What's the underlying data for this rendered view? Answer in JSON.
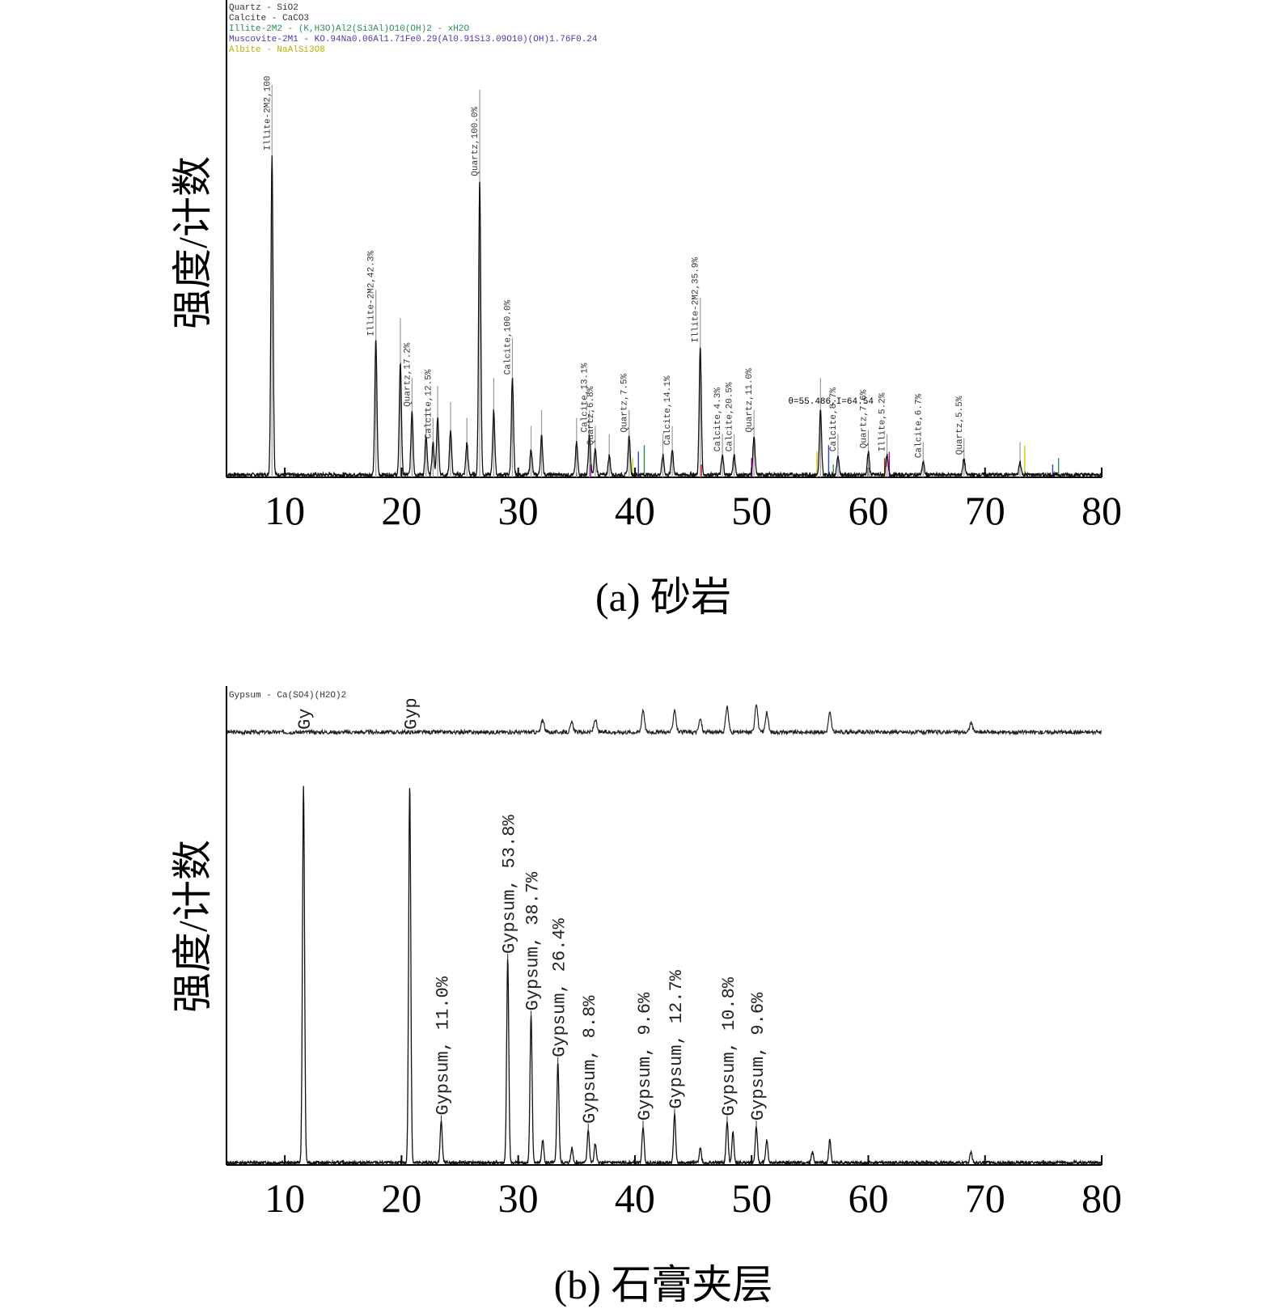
{
  "chart_data": [
    {
      "type": "line",
      "panel_label": "(a) 砂岩",
      "ylabel": "强度/计数",
      "xlabel": "",
      "xlim": [
        5,
        80
      ],
      "ylim": [
        0,
        125
      ],
      "x_ticks": [
        10,
        20,
        30,
        40,
        50,
        60,
        70,
        80
      ],
      "grid": false,
      "legend": {
        "placement": "top-left",
        "entries": [
          {
            "label": "Quartz - SiO2",
            "color": "#333333"
          },
          {
            "label": "Calcite - CaCO3",
            "color": "#333333"
          },
          {
            "label": "Illite-2M2 - (K,H3O)Al2(Si3Al)O10(OH)2 - xH2O",
            "color": "#2e8b57"
          },
          {
            "label": "Muscovite-2M1 - KO.94Na0.06Al1.71Fe0.29(Al0.91Si3.09O10)(OH)1.76F0.24",
            "color": "#4b3aa8"
          },
          {
            "label": "Albite - NaAlSi3O8",
            "color": "#b8b000"
          }
        ]
      },
      "peaks": [
        {
          "x": 8.9,
          "y": 100,
          "label": "Illite-2M2,100"
        },
        {
          "x": 17.8,
          "y": 42,
          "label": "Illite-2M2,42.3%"
        },
        {
          "x": 19.9,
          "y": 35,
          "label": ""
        },
        {
          "x": 20.9,
          "y": 20,
          "label": "Quartz,17.2%"
        },
        {
          "x": 22.1,
          "y": 12,
          "label": ""
        },
        {
          "x": 22.7,
          "y": 10,
          "label": "Calcite,12.5%"
        },
        {
          "x": 23.1,
          "y": 18,
          "label": ""
        },
        {
          "x": 24.2,
          "y": 14,
          "label": ""
        },
        {
          "x": 25.6,
          "y": 10,
          "label": ""
        },
        {
          "x": 26.7,
          "y": 92,
          "label": "Quartz,100.0%"
        },
        {
          "x": 27.9,
          "y": 20,
          "label": ""
        },
        {
          "x": 29.5,
          "y": 30,
          "label": "Calcite,100.0%"
        },
        {
          "x": 31.1,
          "y": 8,
          "label": ""
        },
        {
          "x": 32.0,
          "y": 12,
          "label": ""
        },
        {
          "x": 35.0,
          "y": 10,
          "label": ""
        },
        {
          "x": 36.1,
          "y": 12,
          "label": "Calcite,13.1%"
        },
        {
          "x": 36.6,
          "y": 8,
          "label": "Quartz,6.8%"
        },
        {
          "x": 37.8,
          "y": 6,
          "label": ""
        },
        {
          "x": 39.5,
          "y": 12,
          "label": "Quartz,7.5%"
        },
        {
          "x": 42.4,
          "y": 6,
          "label": ""
        },
        {
          "x": 43.2,
          "y": 8,
          "label": "Calcite,14.1%"
        },
        {
          "x": 45.6,
          "y": 40,
          "label": "Illite-2M2,35.9%"
        },
        {
          "x": 47.5,
          "y": 6,
          "label": "Calcite,4.3%"
        },
        {
          "x": 48.5,
          "y": 6,
          "label": "Calcite,20.5%"
        },
        {
          "x": 50.2,
          "y": 12,
          "label": "Quartz,11.0%"
        },
        {
          "x": 55.9,
          "y": 20,
          "label": "θ=55.486,I=64.54"
        },
        {
          "x": 57.4,
          "y": 6,
          "label": "Calcite,8.7%"
        },
        {
          "x": 60.0,
          "y": 7,
          "label": "Quartz,7.6%"
        },
        {
          "x": 61.6,
          "y": 6,
          "label": "Illite,5.2%"
        },
        {
          "x": 64.7,
          "y": 4,
          "label": "Calcite,6.7%"
        },
        {
          "x": 68.2,
          "y": 5,
          "label": "Quartz,5.5%"
        },
        {
          "x": 73.0,
          "y": 4,
          "label": ""
        }
      ]
    },
    {
      "type": "line",
      "panel_label": "(b) 石膏夹层",
      "ylabel": "强度/计数",
      "xlabel": "",
      "xlim": [
        5,
        80
      ],
      "ylim": [
        0,
        120
      ],
      "x_ticks": [
        10,
        20,
        30,
        40,
        50,
        60,
        70,
        80
      ],
      "grid": false,
      "legend": {
        "placement": "top-left",
        "entries": [
          {
            "label": "Gypsum - Ca(SO4)(H2O)2",
            "color": "#333333"
          }
        ]
      },
      "top_labels": [
        "Gy",
        "Gyp"
      ],
      "peaks": [
        {
          "x": 11.6,
          "y": 100,
          "label": ""
        },
        {
          "x": 20.7,
          "y": 100,
          "label": ""
        },
        {
          "x": 23.4,
          "y": 11.0,
          "label": "Gypsum, 11.0%"
        },
        {
          "x": 29.1,
          "y": 53.8,
          "label": "Gypsum, 53.8%"
        },
        {
          "x": 31.1,
          "y": 38.7,
          "label": "Gypsum, 38.7%"
        },
        {
          "x": 32.1,
          "y": 6,
          "label": ""
        },
        {
          "x": 33.4,
          "y": 26.4,
          "label": "Gypsum, 26.4%"
        },
        {
          "x": 34.6,
          "y": 4,
          "label": ""
        },
        {
          "x": 36.0,
          "y": 8.8,
          "label": "Gypsum, 8.8%"
        },
        {
          "x": 36.6,
          "y": 5,
          "label": ""
        },
        {
          "x": 40.7,
          "y": 9.6,
          "label": "Gypsum, 9.6%"
        },
        {
          "x": 43.4,
          "y": 12.7,
          "label": "Gypsum, 12.7%"
        },
        {
          "x": 45.6,
          "y": 4,
          "label": ""
        },
        {
          "x": 47.9,
          "y": 10.8,
          "label": "Gypsum, 10.8%"
        },
        {
          "x": 48.4,
          "y": 8,
          "label": ""
        },
        {
          "x": 50.4,
          "y": 9.6,
          "label": "Gypsum, 9.6%"
        },
        {
          "x": 51.3,
          "y": 6,
          "label": ""
        },
        {
          "x": 55.2,
          "y": 3,
          "label": ""
        },
        {
          "x": 56.7,
          "y": 6,
          "label": ""
        },
        {
          "x": 68.8,
          "y": 3,
          "label": ""
        }
      ],
      "upper_trace_peaks": [
        {
          "x": 32.1,
          "y": 4
        },
        {
          "x": 34.6,
          "y": 3
        },
        {
          "x": 36.6,
          "y": 4
        },
        {
          "x": 40.7,
          "y": 7
        },
        {
          "x": 43.4,
          "y": 7
        },
        {
          "x": 45.6,
          "y": 4
        },
        {
          "x": 47.9,
          "y": 8
        },
        {
          "x": 50.4,
          "y": 9
        },
        {
          "x": 51.3,
          "y": 6
        },
        {
          "x": 56.7,
          "y": 6
        },
        {
          "x": 68.8,
          "y": 3
        }
      ]
    }
  ]
}
